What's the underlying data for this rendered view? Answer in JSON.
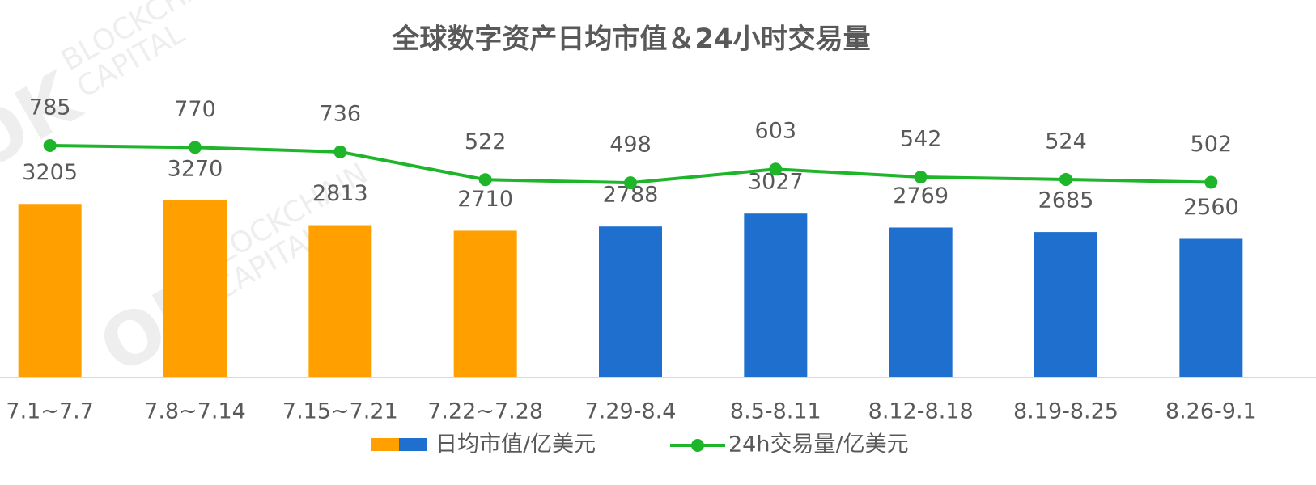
{
  "chart_data": {
    "type": "bar",
    "title": "全球数字资产日均市值＆24小时交易量",
    "watermark": {
      "logo": "OK",
      "lines": [
        "BLOCKCHAIN",
        "CAPITAL"
      ]
    },
    "categories": [
      "7.1~7.7",
      "7.8~7.14",
      "7.15~7.21",
      "7.22~7.28",
      "7.29-8.4",
      "8.5-8.11",
      "8.12-8.18",
      "8.19-8.25",
      "8.26-9.1"
    ],
    "series": [
      {
        "name": "日均市值/亿美元",
        "type": "bar",
        "colors": [
          "#ffa000",
          "#ffa000",
          "#ffa000",
          "#ffa000",
          "#1f6fcf",
          "#1f6fcf",
          "#1f6fcf",
          "#1f6fcf",
          "#1f6fcf"
        ],
        "values": [
          3205,
          3270,
          2813,
          2710,
          2788,
          3027,
          2769,
          2685,
          2560
        ]
      },
      {
        "name": "24h交易量/亿美元",
        "type": "line",
        "axis": "y2",
        "color": "#1fb52a",
        "values": [
          785,
          770,
          736,
          522,
          498,
          603,
          542,
          524,
          502
        ]
      }
    ],
    "ylim": [
      0,
      6000
    ],
    "y2lim": [
      -1000,
      1500
    ]
  }
}
